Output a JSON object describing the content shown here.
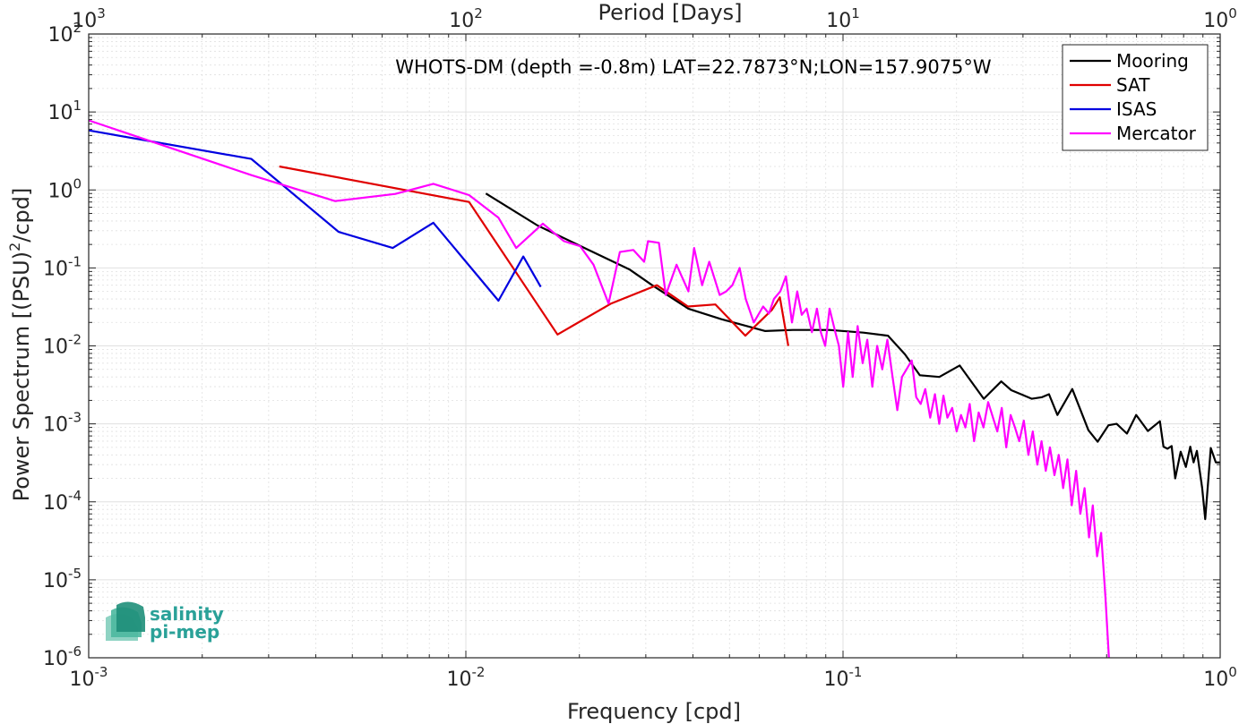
{
  "chart_data": {
    "type": "line",
    "title": "WHOTS-DM (depth =-0.8m) LAT=22.7873°N;LON=157.9075°W",
    "xlabel": "Frequency [cpd]",
    "ylabel_parts": {
      "pre": "Power Spectrum [(PSU)",
      "sup": "2",
      "post": "/cpd]"
    },
    "top_xlabel": "Period [Days]",
    "x_scale": "log",
    "y_scale": "log",
    "xlim": [
      0.001,
      1
    ],
    "ylim": [
      1e-06,
      100
    ],
    "x_ticks": [
      {
        "base": "10",
        "exp": "-3",
        "value": 0.001
      },
      {
        "base": "10",
        "exp": "-2",
        "value": 0.01
      },
      {
        "base": "10",
        "exp": "-1",
        "value": 0.1
      },
      {
        "base": "10",
        "exp": "0",
        "value": 1
      }
    ],
    "y_ticks": [
      {
        "base": "10",
        "exp": "-6",
        "value": 1e-06
      },
      {
        "base": "10",
        "exp": "-5",
        "value": 1e-05
      },
      {
        "base": "10",
        "exp": "-4",
        "value": 0.0001
      },
      {
        "base": "10",
        "exp": "-3",
        "value": 0.001
      },
      {
        "base": "10",
        "exp": "-2",
        "value": 0.01
      },
      {
        "base": "10",
        "exp": "-1",
        "value": 0.1
      },
      {
        "base": "10",
        "exp": "0",
        "value": 1
      },
      {
        "base": "10",
        "exp": "1",
        "value": 10
      },
      {
        "base": "10",
        "exp": "2",
        "value": 100
      }
    ],
    "top_ticks": [
      {
        "base": "10",
        "exp": "3",
        "frequency": 0.001
      },
      {
        "base": "10",
        "exp": "2",
        "frequency": 0.01
      },
      {
        "base": "10",
        "exp": "1",
        "frequency": 0.1
      },
      {
        "base": "10",
        "exp": "0",
        "frequency": 1
      }
    ],
    "grid": true,
    "legend_position": "top-right",
    "series": [
      {
        "name": "Mooring",
        "color": "#000000",
        "points": [
          [
            0.0113,
            0.9
          ],
          [
            0.0155,
            0.35
          ],
          [
            0.0209,
            0.175
          ],
          [
            0.0272,
            0.095
          ],
          [
            0.0312,
            0.06
          ],
          [
            0.0389,
            0.03
          ],
          [
            0.0476,
            0.022
          ],
          [
            0.0622,
            0.0155
          ],
          [
            0.0736,
            0.016
          ],
          [
            0.0919,
            0.016
          ],
          [
            0.1133,
            0.0148
          ],
          [
            0.1316,
            0.0135
          ],
          [
            0.1459,
            0.0078
          ],
          [
            0.1598,
            0.0042
          ],
          [
            0.18,
            0.004
          ],
          [
            0.2038,
            0.0056
          ],
          [
            0.2361,
            0.0021
          ],
          [
            0.2627,
            0.0035
          ],
          [
            0.2793,
            0.0027
          ],
          [
            0.3167,
            0.0021
          ],
          [
            0.3371,
            0.0022
          ],
          [
            0.3517,
            0.0024
          ],
          [
            0.3701,
            0.0013
          ],
          [
            0.4054,
            0.0028
          ],
          [
            0.4472,
            0.00083
          ],
          [
            0.4733,
            0.00059
          ],
          [
            0.5056,
            0.00096
          ],
          [
            0.5315,
            0.001
          ],
          [
            0.5658,
            0.00075
          ],
          [
            0.5988,
            0.0013
          ],
          [
            0.643,
            0.00081
          ],
          [
            0.6919,
            0.00108
          ],
          [
            0.7075,
            0.00051
          ],
          [
            0.7244,
            0.00048
          ],
          [
            0.7436,
            0.00052
          ],
          [
            0.76,
            0.0002
          ],
          [
            0.7855,
            0.00044
          ],
          [
            0.811,
            0.00028
          ],
          [
            0.833,
            0.00051
          ],
          [
            0.8503,
            0.00032
          ],
          [
            0.8673,
            0.00045
          ],
          [
            0.8958,
            0.00015
          ],
          [
            0.9126,
            6e-05
          ],
          [
            0.9443,
            0.00049
          ],
          [
            0.9734,
            0.00032
          ],
          [
            1.0,
            0.00032
          ]
        ]
      },
      {
        "name": "SAT",
        "color": "#e00000",
        "points": [
          [
            0.0032,
            2.0
          ],
          [
            0.0102,
            0.7
          ],
          [
            0.0175,
            0.014
          ],
          [
            0.0243,
            0.035
          ],
          [
            0.0321,
            0.06
          ],
          [
            0.0388,
            0.032
          ],
          [
            0.0459,
            0.034
          ],
          [
            0.0551,
            0.0135
          ],
          [
            0.0648,
            0.029
          ],
          [
            0.068,
            0.042
          ],
          [
            0.0716,
            0.01
          ]
        ]
      },
      {
        "name": "ISAS",
        "color": "#0000e0",
        "points": [
          [
            0.001,
            5.8
          ],
          [
            0.0027,
            2.5
          ],
          [
            0.0046,
            0.29
          ],
          [
            0.0064,
            0.18
          ],
          [
            0.0082,
            0.38
          ],
          [
            0.0122,
            0.038
          ],
          [
            0.0142,
            0.14
          ],
          [
            0.0158,
            0.057
          ]
        ]
      },
      {
        "name": "Mercator",
        "color": "#ff00ff",
        "points": [
          [
            0.001,
            7.8
          ],
          [
            0.0027,
            1.55
          ],
          [
            0.0045,
            0.72
          ],
          [
            0.0065,
            0.89
          ],
          [
            0.0082,
            1.2
          ],
          [
            0.0102,
            0.86
          ],
          [
            0.0122,
            0.44
          ],
          [
            0.0136,
            0.18
          ],
          [
            0.016,
            0.37
          ],
          [
            0.0182,
            0.22
          ],
          [
            0.0201,
            0.19
          ],
          [
            0.0218,
            0.11
          ],
          [
            0.0239,
            0.035
          ],
          [
            0.0256,
            0.16
          ],
          [
            0.0278,
            0.17
          ],
          [
            0.0297,
            0.12
          ],
          [
            0.0304,
            0.22
          ],
          [
            0.0325,
            0.21
          ],
          [
            0.0339,
            0.045
          ],
          [
            0.0362,
            0.11
          ],
          [
            0.0389,
            0.05
          ],
          [
            0.0403,
            0.18
          ],
          [
            0.0423,
            0.06
          ],
          [
            0.0442,
            0.12
          ],
          [
            0.0471,
            0.045
          ],
          [
            0.049,
            0.05
          ],
          [
            0.0509,
            0.06
          ],
          [
            0.0532,
            0.1
          ],
          [
            0.0552,
            0.04
          ],
          [
            0.058,
            0.02
          ],
          [
            0.0614,
            0.032
          ],
          [
            0.0636,
            0.026
          ],
          [
            0.0656,
            0.04
          ],
          [
            0.0682,
            0.05
          ],
          [
            0.0706,
            0.078
          ],
          [
            0.0732,
            0.02
          ],
          [
            0.0756,
            0.05
          ],
          [
            0.0777,
            0.025
          ],
          [
            0.0801,
            0.03
          ],
          [
            0.0827,
            0.015
          ],
          [
            0.0853,
            0.03
          ],
          [
            0.0873,
            0.015
          ],
          [
            0.0897,
            0.01
          ],
          [
            0.0921,
            0.03
          ],
          [
            0.0954,
            0.015
          ],
          [
            0.0975,
            0.01
          ],
          [
            0.1001,
            0.003
          ],
          [
            0.1031,
            0.015
          ],
          [
            0.1061,
            0.004
          ],
          [
            0.1093,
            0.018
          ],
          [
            0.1127,
            0.006
          ],
          [
            0.116,
            0.012
          ],
          [
            0.1196,
            0.003
          ],
          [
            0.1232,
            0.01
          ],
          [
            0.1271,
            0.005
          ],
          [
            0.1311,
            0.012
          ],
          [
            0.1353,
            0.004
          ],
          [
            0.1393,
            0.0015
          ],
          [
            0.1433,
            0.004
          ],
          [
            0.1474,
            0.005
          ],
          [
            0.1521,
            0.0065
          ],
          [
            0.1563,
            0.0022
          ],
          [
            0.1607,
            0.0018
          ],
          [
            0.1652,
            0.0028
          ],
          [
            0.1703,
            0.0012
          ],
          [
            0.1753,
            0.0024
          ],
          [
            0.1799,
            0.001
          ],
          [
            0.1846,
            0.0023
          ],
          [
            0.1891,
            0.0012
          ],
          [
            0.1948,
            0.0016
          ],
          [
            0.2001,
            0.0008
          ],
          [
            0.2055,
            0.0013
          ],
          [
            0.2111,
            0.0009
          ],
          [
            0.2167,
            0.0018
          ],
          [
            0.2226,
            0.0006
          ],
          [
            0.2289,
            0.0014
          ],
          [
            0.2358,
            0.0009
          ],
          [
            0.2426,
            0.0019
          ],
          [
            0.2498,
            0.0012
          ],
          [
            0.2565,
            0.0008
          ],
          [
            0.2636,
            0.0016
          ],
          [
            0.2709,
            0.0005
          ],
          [
            0.2782,
            0.0013
          ],
          [
            0.2857,
            0.0009
          ],
          [
            0.2932,
            0.0006
          ],
          [
            0.3015,
            0.0011
          ],
          [
            0.31,
            0.0004
          ],
          [
            0.3185,
            0.0008
          ],
          [
            0.3275,
            0.0003
          ],
          [
            0.3361,
            0.0006
          ],
          [
            0.3447,
            0.00025
          ],
          [
            0.3538,
            0.0005
          ],
          [
            0.3636,
            0.00022
          ],
          [
            0.3732,
            0.0004
          ],
          [
            0.3834,
            0.00015
          ],
          [
            0.3935,
            0.00035
          ],
          [
            0.404,
            9e-05
          ],
          [
            0.4149,
            0.00025
          ],
          [
            0.4258,
            7e-05
          ],
          [
            0.4368,
            0.00015
          ],
          [
            0.4489,
            3.5e-05
          ],
          [
            0.4595,
            9e-05
          ],
          [
            0.4717,
            2e-05
          ],
          [
            0.4835,
            4e-05
          ],
          [
            0.4963,
            6e-06
          ],
          [
            0.5071,
            1e-06
          ]
        ]
      }
    ]
  },
  "logo": {
    "line1": "salinity",
    "line2": "pi-mep",
    "color": "#2aa198"
  }
}
